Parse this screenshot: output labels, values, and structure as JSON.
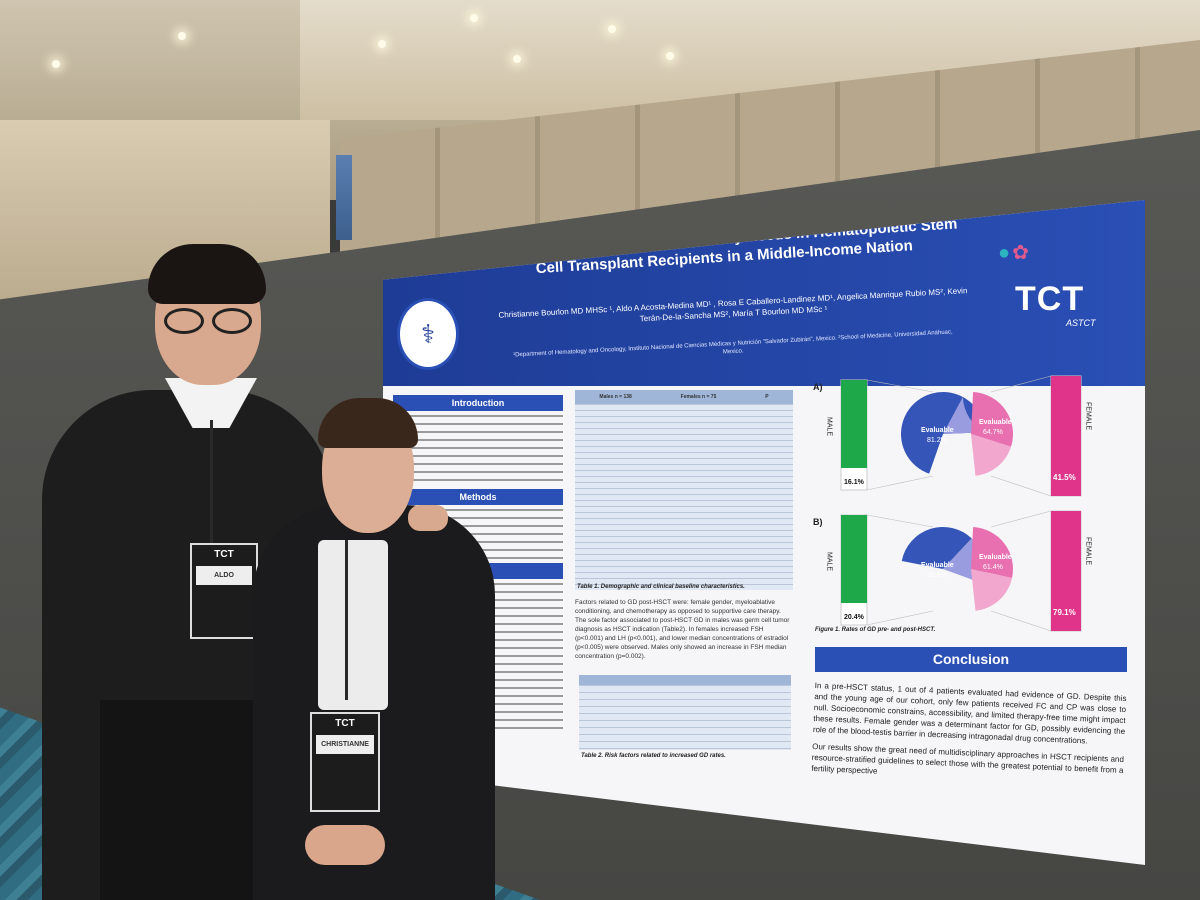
{
  "poster": {
    "title": "Challenges and Unmet Oncofertility Needs in Hematopoietic Stem Cell Transplant Recipients in a Middle-Income Nation",
    "authors": "Christianne Bourlon MD MHSc ¹, Aldo A Acosta-Medina MD¹ , Rosa E Caballero-Landinez MD¹, Angelica Manrique Rubio MS², Kevin Terán-De-la-Sancha MS², María T Bourlon MD MSc ¹",
    "affiliations": "¹Department of Hematology and Oncology, Instituto Nacional de Ciencias Médicas y Nutrición \"Salvador Zubirán\", Mexico. ²School of Medicine, Universidad Anáhuac, Mexico.",
    "logo": "TCT",
    "logo_sub": "ASTCT",
    "sections": {
      "introduction": "Introduction",
      "methods": "Methods",
      "conclusion": "Conclusion"
    },
    "table1_headers": [
      "Males n = 138",
      "Females n = 75",
      "P"
    ],
    "table1_caption": "Table 1. Demographic and clinical baseline characteristics.",
    "table2_caption": "Table 2. Risk factors related to increased GD rates.",
    "figure1_caption": "Figure 1. Rates of GD pre- and post-HSCT.",
    "mid_text": "Factors related to GD post-HSCT were: female gender, myeloablative conditioning, and chemotherapy as opposed to supportive care therapy. The sole factor associated to post-HSCT GD in males was germ cell tumor diagnosis as HSCT indication (Table2). In females increased FSH (p<0.001) and LH (p<0.001), and lower median concentrations of estradiol (p<0.005) were observed. Males only showed an increase in FSH median concentration (p=0.002).",
    "conclusion_p1": "In a pre-HSCT status, 1 out of 4 patients evaluated had evidence of GD. Despite this and the young age of our cohort, only few patients received FC and CP was close to null. Socioeconomic constrains, accessibility, and limited therapy-free time might impact these results. Female gender was a determinant factor for GD, possibly evidencing the role of the blood-testis barrier in decreasing intragonadal drug concentrations.",
    "conclusion_p2": "Our results show the great need of multidisciplinary approaches in HSCT recipients and resource-stratified guidelines to select those with the greatest potential to benefit from a fertility perspective"
  },
  "badges": {
    "man": {
      "brand": "TCT",
      "name": "ALDO"
    },
    "woman": {
      "brand": "TCT",
      "name": "CHRISTIANNE"
    }
  },
  "colors": {
    "poster_blue": "#2a4fb5",
    "male_green": "#1fa84a",
    "female_pink": "#e0338a",
    "pie_blue": "#3556b8",
    "pie_lavender": "#9a9ce0",
    "pie_pink": "#e86fb0",
    "pie_light_pink": "#f2a7cf"
  },
  "chart_data": {
    "type": "pie",
    "panels": [
      {
        "label": "A)",
        "male_bar_label": "MALE",
        "female_bar_label": "FEMALE",
        "male_value_label": "16.1%",
        "female_value_label": "41.5%",
        "male_pie": {
          "label": "Evaluable",
          "value_label": "81.2%",
          "value": 81.2
        },
        "female_pie": {
          "label": "Evaluable",
          "value_label": "64.7%",
          "value": 64.7
        },
        "male_pct": 16.1,
        "female_pct": 41.5
      },
      {
        "label": "B)",
        "male_bar_label": "MALE",
        "female_bar_label": "FEMALE",
        "male_value_label": "20.4%",
        "female_value_label": "79.1%",
        "male_pie": {
          "label": "Evaluable",
          "value_label": "39.9%",
          "value": 39.9
        },
        "female_pie": {
          "label": "Evaluable",
          "value_label": "61.4%",
          "value": 61.4
        },
        "male_pct": 20.4,
        "female_pct": 79.1
      }
    ]
  }
}
